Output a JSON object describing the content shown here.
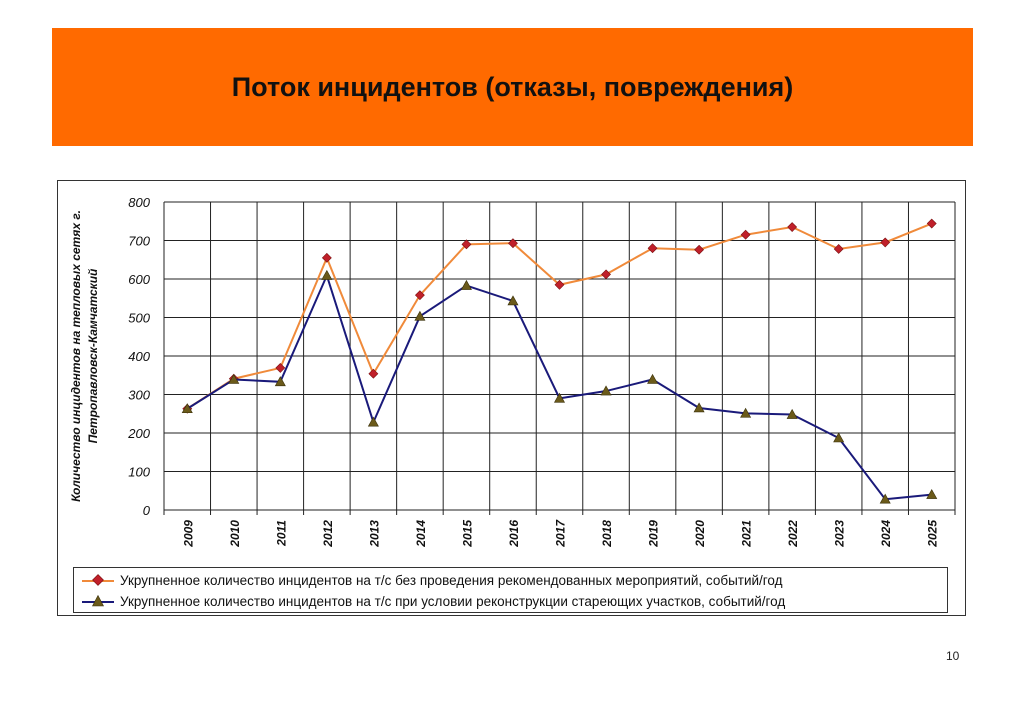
{
  "header": {
    "title": "Поток инцидентов (отказы, повреждения)"
  },
  "page_number": "10",
  "chart_data": {
    "type": "line",
    "title": "",
    "xlabel": "",
    "ylabel_lines": [
      "Количество инцидентов на тепловых сетях г.",
      "Петропавловск-Камчатский"
    ],
    "ylim": [
      0,
      800
    ],
    "yticks": [
      "0",
      "100",
      "200",
      "300",
      "400",
      "500",
      "600",
      "700",
      "800"
    ],
    "grid": true,
    "legend_position": "bottom",
    "categories": [
      "2009",
      "2010",
      "2011",
      "2012",
      "2013",
      "2014",
      "2015",
      "2016",
      "2017",
      "2018",
      "2019",
      "2020",
      "2021",
      "2022",
      "2023",
      "2024",
      "2025"
    ],
    "series": [
      {
        "name": "Укрупненное количество инцидентов на т/с без проведения рекомендованных мероприятий, событий/год",
        "color": "#f08a3a",
        "marker": "diamond",
        "marker_color": "#c0202a",
        "values": [
          263,
          341,
          369,
          655,
          354,
          558,
          690,
          693,
          585,
          612,
          680,
          676,
          715,
          735,
          678,
          695,
          744
        ]
      },
      {
        "name": "Укрупненное количество инцидентов на т/с при условии реконструкции стареющих участков, событий/год",
        "color": "#1a1a7a",
        "marker": "triangle",
        "marker_color": "#6b5a1a",
        "values": [
          263,
          339,
          333,
          609,
          228,
          503,
          583,
          543,
          290,
          309,
          339,
          265,
          251,
          248,
          187,
          28,
          40
        ]
      }
    ]
  }
}
